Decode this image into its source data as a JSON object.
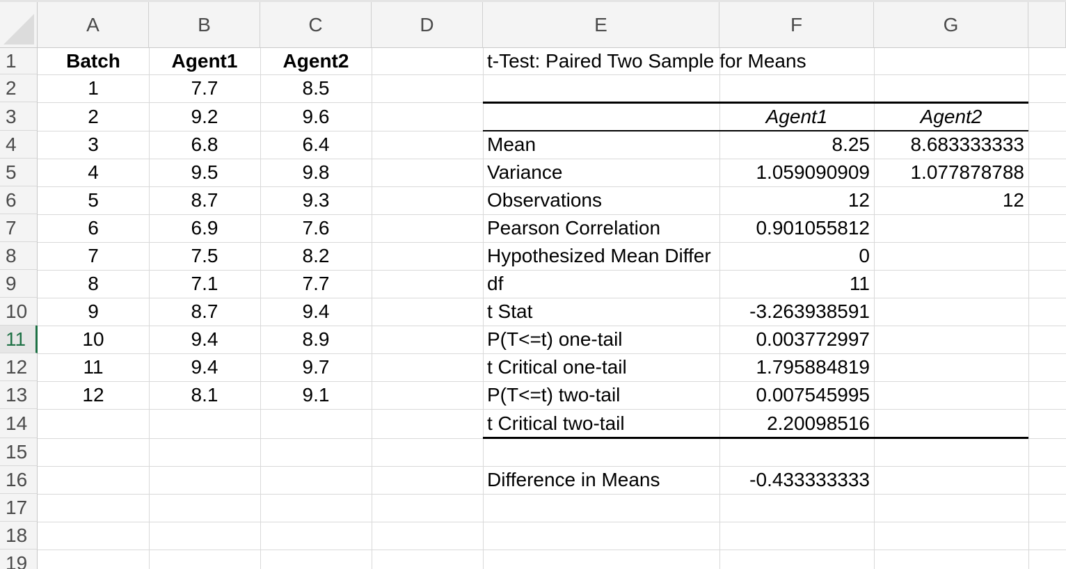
{
  "columns": [
    "A",
    "B",
    "C",
    "D",
    "E",
    "F",
    "G"
  ],
  "rows": [
    "1",
    "2",
    "3",
    "4",
    "5",
    "6",
    "7",
    "8",
    "9",
    "10",
    "11",
    "12",
    "13",
    "14",
    "15",
    "16",
    "17",
    "18",
    "19"
  ],
  "selected_row": "11",
  "data_table": {
    "headers": [
      "Batch",
      "Agent1",
      "Agent2"
    ],
    "rows": [
      [
        "1",
        "7.7",
        "8.5"
      ],
      [
        "2",
        "9.2",
        "9.6"
      ],
      [
        "3",
        "6.8",
        "6.4"
      ],
      [
        "4",
        "9.5",
        "9.8"
      ],
      [
        "5",
        "8.7",
        "9.3"
      ],
      [
        "6",
        "6.9",
        "7.6"
      ],
      [
        "7",
        "7.5",
        "8.2"
      ],
      [
        "8",
        "7.1",
        "7.7"
      ],
      [
        "9",
        "8.7",
        "9.4"
      ],
      [
        "10",
        "9.4",
        "8.9"
      ],
      [
        "11",
        "9.4",
        "9.7"
      ],
      [
        "12",
        "8.1",
        "9.1"
      ]
    ]
  },
  "ttest": {
    "title": "t-Test: Paired Two Sample for Means",
    "col_headers": [
      "Agent1",
      "Agent2"
    ],
    "rows": [
      {
        "label": "Mean",
        "v1": "8.25",
        "v2": "8.683333333"
      },
      {
        "label": "Variance",
        "v1": "1.059090909",
        "v2": "1.077878788"
      },
      {
        "label": "Observations",
        "v1": "12",
        "v2": "12"
      },
      {
        "label": "Pearson Correlation",
        "v1": "0.901055812",
        "v2": ""
      },
      {
        "label": "Hypothesized Mean Differ",
        "v1": "0",
        "v2": ""
      },
      {
        "label": "df",
        "v1": "11",
        "v2": ""
      },
      {
        "label": "t Stat",
        "v1": "-3.263938591",
        "v2": ""
      },
      {
        "label": "P(T<=t) one-tail",
        "v1": "0.003772997",
        "v2": ""
      },
      {
        "label": "t Critical one-tail",
        "v1": "1.795884819",
        "v2": ""
      },
      {
        "label": "P(T<=t) two-tail",
        "v1": "0.007545995",
        "v2": ""
      },
      {
        "label": "t Critical two-tail",
        "v1": "2.20098516",
        "v2": ""
      }
    ],
    "diff_label": "Difference in Means",
    "diff_value": "-0.433333333"
  }
}
